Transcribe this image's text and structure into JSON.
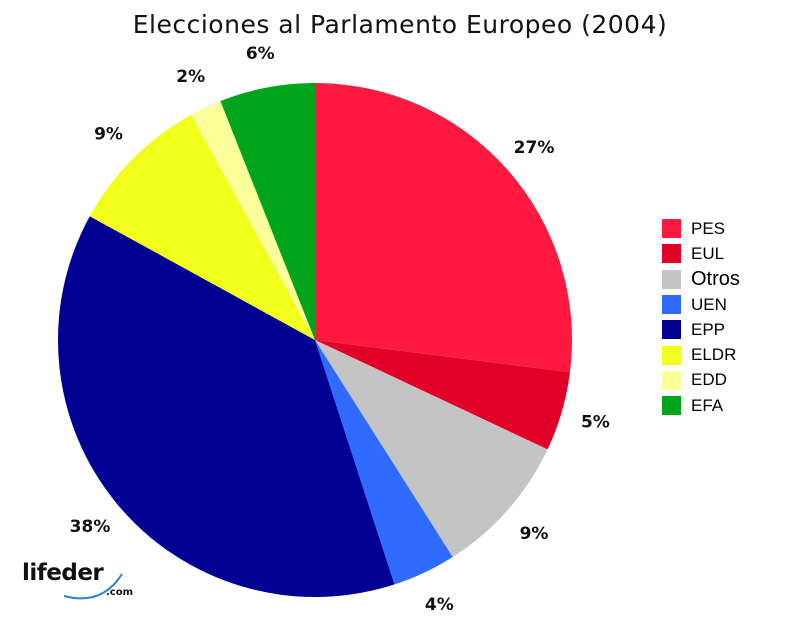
{
  "chart_data": {
    "type": "pie",
    "title": "Elecciones al Parlamento Europeo (2004)",
    "slices": [
      {
        "name": "PES",
        "value": 27,
        "label": "27%",
        "color": "#ff1940"
      },
      {
        "name": "EUL",
        "value": 5,
        "label": "5%",
        "color": "#e00028"
      },
      {
        "name": "Otros",
        "value": 9,
        "label": "9%",
        "color": "#c4c4c4"
      },
      {
        "name": "UEN",
        "value": 4,
        "label": "4%",
        "color": "#2f6bff"
      },
      {
        "name": "EPP",
        "value": 38,
        "label": "38%",
        "color": "#000093"
      },
      {
        "name": "ELDR",
        "value": 9,
        "label": "9%",
        "color": "#f2ff1a"
      },
      {
        "name": "EDD",
        "value": 2,
        "label": "2%",
        "color": "#fbff99"
      },
      {
        "name": "EFA",
        "value": 6,
        "label": "6%",
        "color": "#00a51b"
      }
    ],
    "start_angle": "top",
    "direction": "clockwise",
    "legend_placement": "right"
  },
  "watermark": {
    "text": "lifeder",
    "suffix": ".com"
  }
}
